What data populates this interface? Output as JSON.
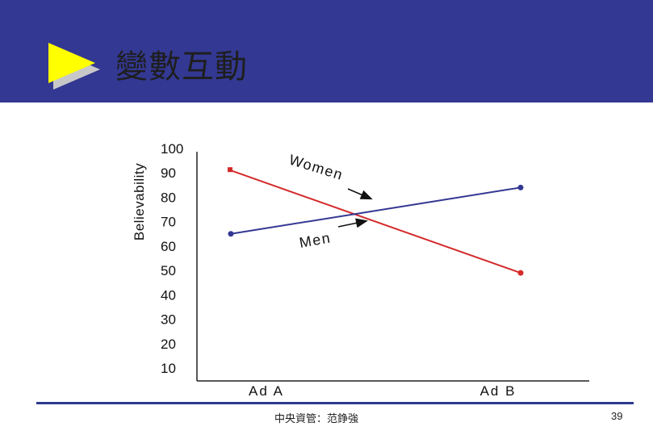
{
  "slide": {
    "title": "變數互動",
    "footer": "中央資管：范錚強",
    "page_number": "39",
    "colors": {
      "header_bg": "#333892",
      "arrow_fill": "#ffff00",
      "arrow_shadow": "#c8c8c8",
      "footer_line": "#2b3a90"
    }
  },
  "chart_data": {
    "type": "line",
    "categories": [
      "Ad  A",
      "Ad  B"
    ],
    "series": [
      {
        "name": "Women",
        "values": [
          91,
          49
        ],
        "color": "#d42a2a"
      },
      {
        "name": "Men",
        "values": [
          65,
          84
        ],
        "color": "#333892"
      }
    ],
    "ylabel": "Believability",
    "xlabel": "",
    "ylim": [
      10,
      100
    ],
    "yticks": [
      "100",
      "90",
      "80",
      "70",
      "60",
      "50",
      "40",
      "30",
      "20",
      "10"
    ],
    "grid": false,
    "annotations": [
      {
        "text": "Women",
        "points_to": "Women"
      },
      {
        "text": "Men",
        "points_to": "Men"
      }
    ]
  }
}
